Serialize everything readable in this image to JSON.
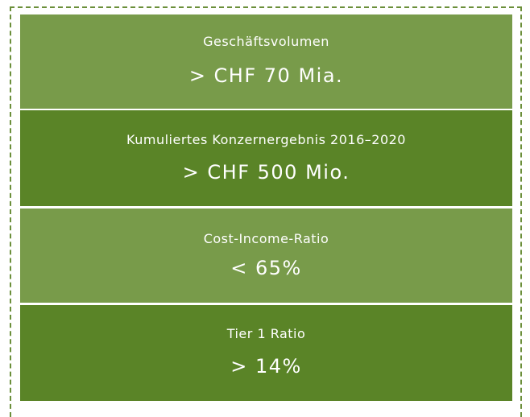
{
  "items": [
    {
      "label": "Geschäftsvolumen",
      "value": "> CHF 70 Mia."
    },
    {
      "label": "Kumuliertes Konzernergebnis 2016–2020",
      "value": "> CHF 500 Mio."
    },
    {
      "label": "Cost-Income-Ratio",
      "value": "< 65%"
    },
    {
      "label": "Tier 1 Ratio",
      "value": "> 14%"
    }
  ]
}
